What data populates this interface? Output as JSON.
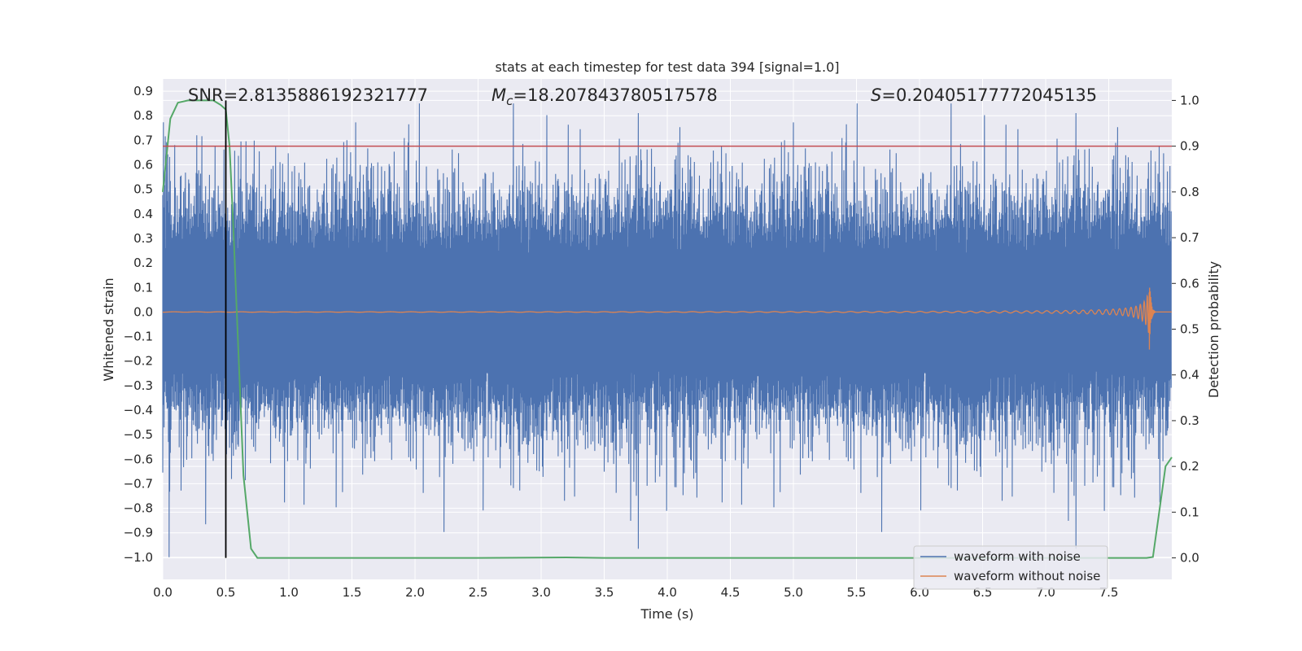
{
  "chart_data": {
    "type": "line",
    "title": "stats at each timestep for test data 394 [signal=1.0]",
    "xlabel": "Time (s)",
    "ylabel": "Whitened strain",
    "y2label": "Detection probability",
    "xlim": [
      0.0,
      8.0
    ],
    "ylim": [
      -1.09,
      0.95
    ],
    "y2lim": [
      -0.047,
      1.047
    ],
    "grid": true,
    "xticks": [
      "0.0",
      "0.5",
      "1.0",
      "1.5",
      "2.0",
      "2.5",
      "3.0",
      "3.5",
      "4.0",
      "4.5",
      "5.0",
      "5.5",
      "6.0",
      "6.5",
      "7.0",
      "7.5"
    ],
    "yticks": [
      "0.9",
      "0.8",
      "0.7",
      "0.6",
      "0.5",
      "0.4",
      "0.3",
      "0.2",
      "0.1",
      "0.0",
      "−0.1",
      "−0.2",
      "−0.3",
      "−0.4",
      "−0.5",
      "−0.6",
      "−0.7",
      "−0.8",
      "−0.9",
      "−1.0"
    ],
    "y2ticks": [
      "0.0",
      "0.1",
      "0.2",
      "0.3",
      "0.4",
      "0.5",
      "0.6",
      "0.7",
      "0.8",
      "0.9",
      "1.0"
    ],
    "annotations": {
      "snr": "SNR=2.8135886192321777",
      "mc_symbol": "M",
      "mc_sub": "c",
      "mc_value": "=18.207843780517578",
      "s_symbol": "S",
      "s_value": "=0.20405177772045135"
    },
    "threshold": 0.9,
    "event_marker_time": 0.5,
    "legend": {
      "position": "lower-right",
      "entries": [
        "waveform with noise",
        "waveform without noise"
      ]
    },
    "series": [
      {
        "name": "waveform with noise",
        "axis": "left",
        "color": "#4c72b0",
        "duration": 8.0,
        "samples": 1600,
        "typical_amplitude": 0.3,
        "peak_min": -1.0,
        "peak_max": 0.85
      },
      {
        "name": "waveform without noise",
        "axis": "left",
        "color": "#dd8452",
        "chirp_start": 0.0,
        "merger_time": 7.82,
        "merger_peak": 0.19,
        "merger_min": -0.18
      },
      {
        "name": "detection probability",
        "axis": "right",
        "color": "#55a868",
        "x": [
          0.0,
          0.03,
          0.06,
          0.12,
          0.2,
          0.3,
          0.4,
          0.46,
          0.5,
          0.53,
          0.56,
          0.6,
          0.64,
          0.7,
          0.75,
          0.8,
          1.5,
          2.5,
          3.2,
          3.5,
          5.0,
          6.0,
          7.0,
          7.6,
          7.8,
          7.85,
          7.9,
          7.95,
          8.0
        ],
        "values": [
          0.8,
          0.88,
          0.96,
          0.995,
          1.0,
          1.0,
          1.0,
          0.99,
          0.98,
          0.9,
          0.72,
          0.45,
          0.18,
          0.02,
          0.0,
          0.0,
          0.0,
          0.0,
          0.001,
          0.0,
          0.0,
          0.0,
          0.0,
          0.0,
          0.0,
          0.002,
          0.1,
          0.2,
          0.22
        ]
      }
    ],
    "colors": {
      "background": "#eaeaf2",
      "grid": "#ffffff",
      "threshold": "#c44e52",
      "marker": "#000000"
    }
  }
}
